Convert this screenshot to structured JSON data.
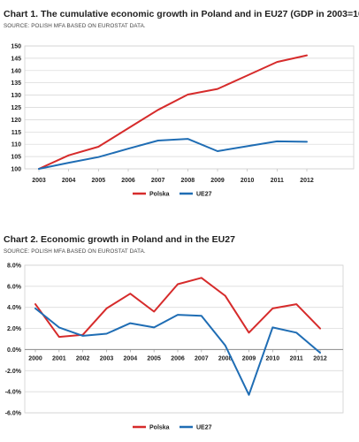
{
  "chart_data": [
    {
      "type": "line",
      "title": "Chart 1. The cumulative economic growth in Poland and in EU27 (GDP in 2003=100)",
      "source": "SOURCE: POLISH MFA BASED ON EUROSTAT DATA.",
      "categories": [
        "2003",
        "2004",
        "2005",
        "2006",
        "2007",
        "2008",
        "2009",
        "2010",
        "2011",
        "2012"
      ],
      "series": [
        {
          "name": "Polska",
          "color": "#d62b2b",
          "values": [
            100,
            105.5,
            109,
            116.5,
            124,
            130.2,
            132.5,
            138,
            143.5,
            146.2
          ]
        },
        {
          "name": "UE27",
          "color": "#1f6db4",
          "values": [
            100,
            102.5,
            104.8,
            108.2,
            111.5,
            112.2,
            107.2,
            109.2,
            111.2,
            111
          ]
        }
      ],
      "ylim": [
        100,
        150
      ],
      "yticks": [
        "100",
        "105",
        "110",
        "115",
        "120",
        "125",
        "130",
        "135",
        "140",
        "145",
        "150"
      ],
      "grid": true,
      "legend": "bottom"
    },
    {
      "type": "line",
      "title": "Chart 2. Economic growth in Poland and in the EU27",
      "source": "SOURCE: POLISH MFA BASED ON EUROSTAT DATA.",
      "categories": [
        "2000",
        "2001",
        "2002",
        "2003",
        "2004",
        "2005",
        "2006",
        "2007",
        "2008",
        "2009",
        "2010",
        "2011",
        "2012"
      ],
      "series": [
        {
          "name": "Polska",
          "color": "#d62b2b",
          "values": [
            4.3,
            1.2,
            1.4,
            3.9,
            5.3,
            3.6,
            6.2,
            6.8,
            5.1,
            1.6,
            3.9,
            4.3,
            2.0
          ]
        },
        {
          "name": "UE27",
          "color": "#1f6db4",
          "values": [
            3.9,
            2.1,
            1.3,
            1.5,
            2.5,
            2.1,
            3.3,
            3.2,
            0.4,
            -4.3,
            2.1,
            1.6,
            -0.3
          ]
        }
      ],
      "ylim": [
        -6,
        8
      ],
      "yticks": [
        "8.0%",
        "6.0%",
        "4.0%",
        "2.0%",
        "0.0%",
        "-2.0%",
        "-4.0%",
        "-6.0%"
      ],
      "grid": true,
      "legend": "bottom"
    }
  ]
}
